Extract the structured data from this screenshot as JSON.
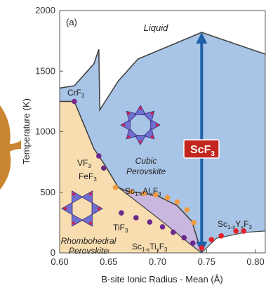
{
  "chart_data": {
    "type": "phase-diagram",
    "panel_label": "(a)",
    "xlabel": "B-site Ionic Radius - Mean (Å)",
    "ylabel": "Temperature (K)",
    "xlim": [
      0.6,
      0.81
    ],
    "ylim": [
      0,
      2000
    ],
    "xticks": [
      "0.60",
      "0.65",
      "0.70",
      "0.75",
      "0.80"
    ],
    "yticks": [
      "0",
      "500",
      "1000",
      "1500",
      "2000"
    ],
    "grid": false,
    "colors": {
      "cubic": "#a8c4e6",
      "rhombohedral": "#f8ddb0",
      "mixed": "#c9b7df",
      "boundary": "#444444",
      "arrow": "#1f5fa8",
      "label_box": "#c3261e",
      "purple_points": "#6b2a8a",
      "orange_points": "#f29a3e",
      "red_points": "#e6202a",
      "crf3_point": "#7a2a8a",
      "side_motif": "#c9852f"
    },
    "region_labels": {
      "liquid": "Liquid",
      "cubic": [
        "Cubic",
        "Perovskite"
      ],
      "rhombohedral": [
        "Rhombohedral",
        "Perovskite"
      ]
    },
    "compound_labels": {
      "crf3": "CrF",
      "vf3": "VF",
      "fef3": "FeF",
      "tif3": "TiF",
      "scf3": "ScF",
      "sub3": "3",
      "sc_al": [
        "Sc",
        "1-x",
        "Al",
        "x",
        "F",
        "3"
      ],
      "sc_ti": [
        "Sc",
        "1-x",
        "Ti",
        "x",
        "F",
        "3"
      ],
      "sc_y": [
        "Sc",
        "1-x",
        "Y",
        "x",
        "F",
        "3"
      ]
    },
    "boundaries": {
      "melting": [
        [
          0.6,
          1360
        ],
        [
          0.615,
          1380
        ],
        [
          0.635,
          1560
        ],
        [
          0.64,
          1680
        ],
        [
          0.641,
          1180
        ],
        [
          0.66,
          1420
        ],
        [
          0.68,
          1600
        ],
        [
          0.745,
          1820
        ],
        [
          0.81,
          1640
        ]
      ],
      "rhombohedral_cubic": [
        [
          0.6,
          1250
        ],
        [
          0.615,
          1250
        ],
        [
          0.635,
          860
        ],
        [
          0.645,
          740
        ],
        [
          0.66,
          540
        ],
        [
          0.67,
          505
        ],
        [
          0.68,
          500
        ],
        [
          0.7,
          470
        ],
        [
          0.72,
          390
        ],
        [
          0.735,
          260
        ],
        [
          0.745,
          0
        ]
      ],
      "mixed_lower": [
        [
          0.66,
          540
        ],
        [
          0.7,
          290
        ],
        [
          0.72,
          160
        ],
        [
          0.735,
          60
        ],
        [
          0.745,
          0
        ]
      ],
      "cubic_lower_right": [
        [
          0.745,
          0
        ],
        [
          0.76,
          120
        ],
        [
          0.79,
          170
        ],
        [
          0.81,
          180
        ]
      ]
    },
    "series": [
      {
        "name": "CrF3",
        "points": [
          [
            0.615,
            1250
          ]
        ]
      },
      {
        "name": "VF3",
        "points": [
          [
            0.64,
            800
          ]
        ]
      },
      {
        "name": "FeF3",
        "points": [
          [
            0.645,
            700
          ]
        ]
      },
      {
        "name": "Sc1-xAlxF3",
        "points": [
          [
            0.657,
            540
          ],
          [
            0.673,
            505
          ],
          [
            0.686,
            490
          ],
          [
            0.698,
            480
          ],
          [
            0.71,
            455
          ],
          [
            0.72,
            420
          ],
          [
            0.73,
            355
          ],
          [
            0.737,
            250
          ]
        ]
      },
      {
        "name": "Sc1-xTixF3",
        "points": [
          [
            0.663,
            330
          ],
          [
            0.678,
            290
          ],
          [
            0.692,
            255
          ],
          [
            0.705,
            215
          ],
          [
            0.716,
            170
          ],
          [
            0.727,
            125
          ],
          [
            0.736,
            80
          ]
        ]
      },
      {
        "name": "ScF3",
        "points": [
          [
            0.745,
            40
          ]
        ]
      },
      {
        "name": "Sc1-xYxF3",
        "points": [
          [
            0.755,
            110
          ],
          [
            0.765,
            140
          ],
          [
            0.78,
            180
          ],
          [
            0.788,
            180
          ]
        ]
      }
    ],
    "scf3_arrow": {
      "x": 0.745,
      "y_from": 1820,
      "y_to": 0
    }
  }
}
